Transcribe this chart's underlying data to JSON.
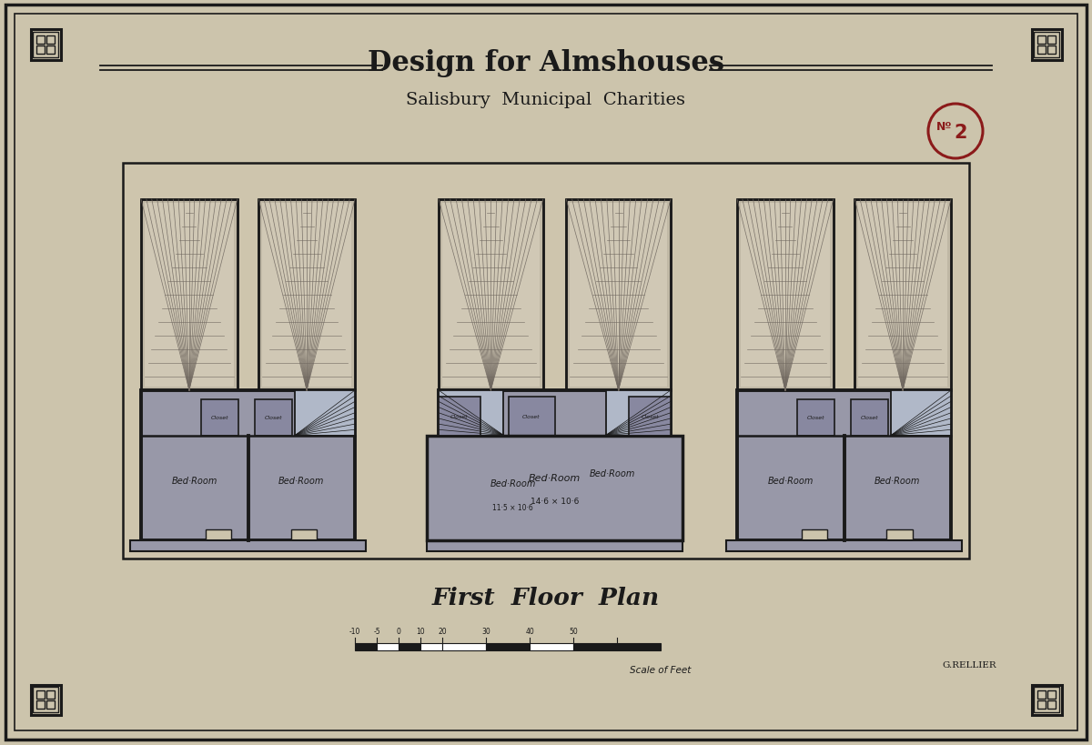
{
  "title1": "Design for Almshouses",
  "title2": "Salisbury  Municipal  Charities",
  "subtitle": "First  Floor  Plan",
  "number_label": "Nº2",
  "attribution": "G.Rellier",
  "scale_label": "Scale of Feet",
  "bg_color": "#ccc4ac",
  "plan_bg": "#c8c0a8",
  "dark_color": "#1a1a1a",
  "room_fill": "#9090a0",
  "roof_light": "#c8c0b0",
  "red_color": "#8b1a1a",
  "wall_fill": "#1a1a1a",
  "stair_fill": "#a0a8b8"
}
